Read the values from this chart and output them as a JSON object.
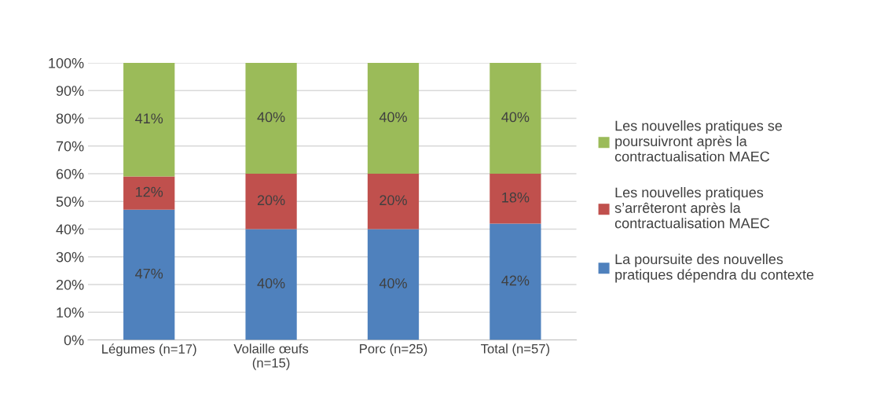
{
  "chart_data": {
    "type": "bar",
    "stacked": true,
    "categories": [
      "Légumes (n=17)",
      "Volaille œufs\n(n=15)",
      "Porc (n=25)",
      "Total (n=57)"
    ],
    "series": [
      {
        "name": "La poursuite des nouvelles\npratiques dépendra du contexte",
        "color": "#4f81bd",
        "values": [
          47,
          40,
          40,
          42
        ],
        "value_labels": [
          "47%",
          "40%",
          "40%",
          "42%"
        ]
      },
      {
        "name": "Les nouvelles pratiques\ns’arrêteront après la\ncontractualisation MAEC",
        "color": "#c0504d",
        "values": [
          12,
          20,
          20,
          18
        ],
        "value_labels": [
          "12%",
          "20%",
          "20%",
          "18%"
        ]
      },
      {
        "name": "Les nouvelles pratiques se\npoursuivront après la\ncontractualisation MAEC",
        "color": "#9bbb59",
        "values": [
          41,
          40,
          40,
          40
        ],
        "value_labels": [
          "41%",
          "40%",
          "40%",
          "40%"
        ]
      }
    ],
    "ylim": [
      0,
      100
    ],
    "yticks": [
      {
        "value": 0,
        "label": "0%"
      },
      {
        "value": 10,
        "label": "10%"
      },
      {
        "value": 20,
        "label": "20%"
      },
      {
        "value": 30,
        "label": "30%"
      },
      {
        "value": 40,
        "label": "40%"
      },
      {
        "value": 50,
        "label": "50%"
      },
      {
        "value": 60,
        "label": "60%"
      },
      {
        "value": 70,
        "label": "70%"
      },
      {
        "value": 80,
        "label": "80%"
      },
      {
        "value": 90,
        "label": "90%"
      },
      {
        "value": 100,
        "label": "100%"
      }
    ],
    "grid": "y",
    "legend": "right"
  }
}
